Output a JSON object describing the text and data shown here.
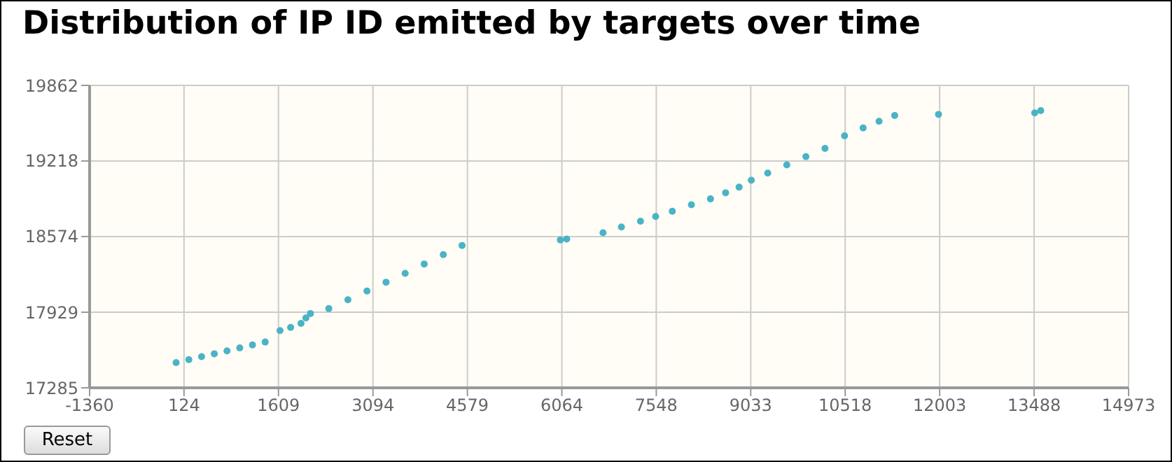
{
  "chart_data": {
    "type": "scatter",
    "title": "Distribution of IP ID emitted by targets over time",
    "x": [
      0,
      200,
      400,
      600,
      800,
      1000,
      1200,
      1400,
      1633,
      1800,
      1963,
      2040,
      2111,
      2400,
      2700,
      3000,
      3300,
      3600,
      3900,
      4200,
      4495,
      6040,
      6140,
      6711,
      7000,
      7300,
      7538,
      7800,
      8100,
      8400,
      8638,
      8850,
      9042,
      9300,
      9600,
      9900,
      10200,
      10508,
      10800,
      11050,
      11296,
      11985,
      13497,
      13592
    ],
    "series": [
      {
        "color": "#4ab3c6",
        "values": [
          17500,
          17525,
          17550,
          17575,
          17600,
          17625,
          17650,
          17675,
          17773,
          17800,
          17834,
          17880,
          17918,
          17960,
          18035,
          18110,
          18185,
          18260,
          18340,
          18420,
          18498,
          18545,
          18553,
          18606,
          18655,
          18705,
          18745,
          18790,
          18845,
          18895,
          18947,
          18995,
          19054,
          19115,
          19185,
          19255,
          19325,
          19432,
          19500,
          19556,
          19606,
          19615,
          19628,
          19647
        ]
      }
    ],
    "xlim": [
      -1360,
      14973
    ],
    "xticks": [
      -1360,
      124,
      1609,
      3094,
      4579,
      6064,
      7548,
      9033,
      10518,
      12003,
      13488,
      14973
    ],
    "ylim": [
      17285,
      19862
    ],
    "yticks": [
      17285,
      17929,
      18574,
      19218,
      19862
    ],
    "grid": true,
    "marker": "circle",
    "legend": false,
    "annotations": [
      "Reset"
    ]
  }
}
